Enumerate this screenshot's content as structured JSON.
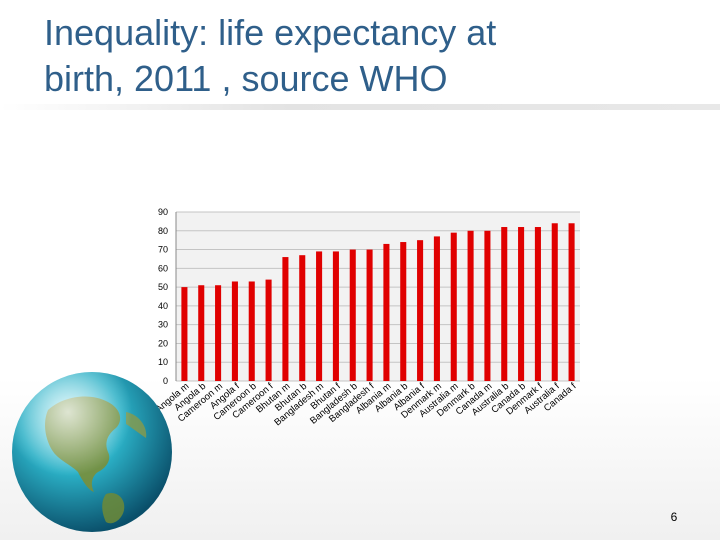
{
  "slide": {
    "title_line1": "Inequality: life expectancy at",
    "title_line2": "birth, 2011 , source WHO",
    "page_number": "6"
  },
  "colors": {
    "title": "#2f5f8a",
    "bar": "#e00000"
  },
  "chart_data": {
    "type": "bar",
    "categories": [
      "Angola m",
      "Angola b",
      "Cameroon m",
      "Angola f",
      "Cameroon b",
      "Cameroon f",
      "Bhutan m",
      "Bhutan b",
      "Bangladesh m",
      "Bhutan f",
      "Bangladesh b",
      "Bangladesh f",
      "Albania m",
      "Albania b",
      "Albania f",
      "Denmark m",
      "Australia m",
      "Denmark b",
      "Canada m",
      "Australia b",
      "Canada b",
      "Denmark f",
      "Australia f",
      "Canada f"
    ],
    "values": [
      50,
      51,
      51,
      53,
      53,
      54,
      66,
      67,
      69,
      69,
      70,
      70,
      73,
      74,
      75,
      77,
      79,
      80,
      80,
      82,
      82,
      82,
      84,
      84
    ],
    "ylim": [
      0,
      90
    ],
    "yticks": [
      0,
      10,
      20,
      30,
      40,
      50,
      60,
      70,
      80,
      90
    ],
    "grid": true,
    "title": "",
    "xlabel": "",
    "ylabel": ""
  }
}
